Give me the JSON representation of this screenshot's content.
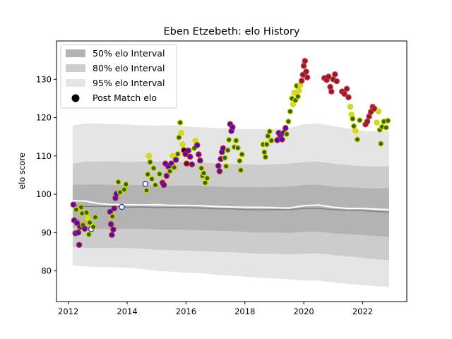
{
  "chart_data": {
    "type": "scatter",
    "title": "Eben Etzebeth: elo History",
    "xlabel": "",
    "ylabel": "elo score",
    "xlim": [
      2011.6,
      2023.5
    ],
    "ylim": [
      72,
      140
    ],
    "x_ticks": [
      2012,
      2014,
      2016,
      2018,
      2020,
      2022
    ],
    "x_tick_labels": [
      "2012",
      "2014",
      "2016",
      "2018",
      "2020",
      "2022"
    ],
    "y_ticks": [
      80,
      90,
      100,
      110,
      120,
      130
    ],
    "y_tick_labels": [
      "80",
      "90",
      "100",
      "110",
      "120",
      "130"
    ],
    "grid": false,
    "legend": {
      "position": "top-left",
      "entries": [
        {
          "label": "50% elo Interval",
          "color": "#b3b3b3"
        },
        {
          "label": "80% elo Interval",
          "color": "#cccccc"
        },
        {
          "label": "95% elo Interval",
          "color": "#e5e5e5"
        },
        {
          "label": "Post Match elo",
          "color": "#000000"
        }
      ]
    },
    "bands": {
      "x": [
        2012.15,
        2012.6,
        2013.0,
        2013.5,
        2014.0,
        2014.5,
        2015.0,
        2015.5,
        2016.0,
        2016.5,
        2017.0,
        2017.5,
        2018.0,
        2018.5,
        2019.0,
        2019.5,
        2020.0,
        2020.5,
        2021.0,
        2021.5,
        2022.0,
        2022.5,
        2022.9
      ],
      "median": [
        97.0,
        96.8,
        96.8,
        96.8,
        96.6,
        96.7,
        96.5,
        96.6,
        96.5,
        96.4,
        96.2,
        96.2,
        96.0,
        95.9,
        96.0,
        96.0,
        96.3,
        96.3,
        96.0,
        95.8,
        95.7,
        95.5,
        95.3
      ],
      "p50": [
        [
          91.5,
          102.5
        ],
        [
          91.0,
          102.5
        ],
        [
          91.0,
          102.6
        ],
        [
          91.0,
          102.4
        ],
        [
          91.0,
          102.3
        ],
        [
          91.0,
          102.4
        ],
        [
          90.8,
          102.3
        ],
        [
          90.8,
          102.2
        ],
        [
          90.7,
          102.3
        ],
        [
          90.6,
          102.2
        ],
        [
          90.5,
          102.0
        ],
        [
          90.4,
          101.9
        ],
        [
          90.2,
          101.9
        ],
        [
          90.0,
          101.8
        ],
        [
          90.0,
          101.9
        ],
        [
          89.9,
          102.0
        ],
        [
          90.2,
          102.4
        ],
        [
          90.3,
          102.5
        ],
        [
          89.8,
          102.0
        ],
        [
          89.6,
          101.8
        ],
        [
          89.4,
          101.6
        ],
        [
          89.1,
          101.5
        ],
        [
          88.9,
          101.6
        ]
      ],
      "p80": [
        [
          86.2,
          108.0
        ],
        [
          86.0,
          108.5
        ],
        [
          86.0,
          108.5
        ],
        [
          86.0,
          108.6
        ],
        [
          86.0,
          108.4
        ],
        [
          85.8,
          108.5
        ],
        [
          85.5,
          108.5
        ],
        [
          85.4,
          108.4
        ],
        [
          85.3,
          108.4
        ],
        [
          85.2,
          108.3
        ],
        [
          85.0,
          108.0
        ],
        [
          84.9,
          107.9
        ],
        [
          84.7,
          107.8
        ],
        [
          84.5,
          107.7
        ],
        [
          84.5,
          107.8
        ],
        [
          84.3,
          108.0
        ],
        [
          84.5,
          108.4
        ],
        [
          84.6,
          108.5
        ],
        [
          84.1,
          108.0
        ],
        [
          83.8,
          107.6
        ],
        [
          83.4,
          107.3
        ],
        [
          83.0,
          107.2
        ],
        [
          82.8,
          107.3
        ]
      ],
      "p95": [
        [
          81.4,
          118.0
        ],
        [
          81.2,
          118.5
        ],
        [
          81.0,
          118.5
        ],
        [
          81.0,
          118.3
        ],
        [
          80.8,
          118.2
        ],
        [
          80.5,
          118.0
        ],
        [
          80.0,
          117.9
        ],
        [
          79.8,
          118.0
        ],
        [
          79.5,
          117.7
        ],
        [
          79.4,
          117.5
        ],
        [
          79.0,
          117.3
        ],
        [
          78.8,
          117.2
        ],
        [
          78.5,
          117.0
        ],
        [
          78.2,
          117.0
        ],
        [
          78.0,
          117.0
        ],
        [
          77.8,
          117.3
        ],
        [
          77.5,
          118.3
        ],
        [
          77.5,
          118.5
        ],
        [
          77.0,
          117.8
        ],
        [
          76.6,
          117.2
        ],
        [
          76.3,
          116.6
        ],
        [
          76.0,
          116.4
        ],
        [
          75.8,
          116.5
        ]
      ]
    },
    "post_match_line": {
      "color": "#ffffff",
      "x": [
        2012.15,
        2012.6,
        2013.0,
        2013.5,
        2014.0,
        2014.5,
        2015.0,
        2015.5,
        2016.0,
        2016.5,
        2017.0,
        2017.5,
        2018.0,
        2018.5,
        2019.0,
        2019.5,
        2020.0,
        2020.5,
        2021.0,
        2021.5,
        2022.0,
        2022.5,
        2022.9
      ],
      "y": [
        98.3,
        98.2,
        97.6,
        97.3,
        97.3,
        97.2,
        97.3,
        97.1,
        97.1,
        97.0,
        96.8,
        96.7,
        96.6,
        96.6,
        96.5,
        96.4,
        97.0,
        97.2,
        96.6,
        96.3,
        96.3,
        96.1,
        96.0
      ]
    },
    "marker_styles": {
      "A": {
        "fill": "#2e6b0d",
        "edge": "#e0d010"
      },
      "B": {
        "fill": "#3a10c8",
        "edge": "#cc2222"
      },
      "C": {
        "fill": "#ffffff",
        "edge": "#2233bb"
      },
      "D": {
        "fill": "#2233bb",
        "edge": "#cc2222"
      },
      "E": {
        "fill": "#c8e020",
        "edge": "#e0d010"
      },
      "F": {
        "fill": "#8a1e2a",
        "edge": "#cc3344"
      },
      "G": {
        "fill": "#5a1010",
        "edge": "#cc2222"
      },
      "H": {
        "fill": "#111111",
        "edge": "#cc2222"
      }
    },
    "points": [
      {
        "x": 2012.17,
        "y": 97.3,
        "s": "B"
      },
      {
        "x": 2012.2,
        "y": 93.2,
        "s": "B"
      },
      {
        "x": 2012.24,
        "y": 89.8,
        "s": "D"
      },
      {
        "x": 2012.27,
        "y": 96.0,
        "s": "A"
      },
      {
        "x": 2012.3,
        "y": 92.5,
        "s": "B"
      },
      {
        "x": 2012.34,
        "y": 90.0,
        "s": "B"
      },
      {
        "x": 2012.37,
        "y": 86.8,
        "s": "B"
      },
      {
        "x": 2012.4,
        "y": 91.5,
        "s": "D"
      },
      {
        "x": 2012.44,
        "y": 96.6,
        "s": "A"
      },
      {
        "x": 2012.47,
        "y": 95.0,
        "s": "A"
      },
      {
        "x": 2012.5,
        "y": 92.0,
        "s": "A"
      },
      {
        "x": 2012.56,
        "y": 91.0,
        "s": "B"
      },
      {
        "x": 2012.62,
        "y": 95.2,
        "s": "A"
      },
      {
        "x": 2012.66,
        "y": 93.8,
        "s": "E"
      },
      {
        "x": 2012.7,
        "y": 89.5,
        "s": "A"
      },
      {
        "x": 2012.73,
        "y": 92.6,
        "s": "A"
      },
      {
        "x": 2012.78,
        "y": 90.9,
        "s": "C"
      },
      {
        "x": 2012.85,
        "y": 91.5,
        "s": "A"
      },
      {
        "x": 2012.92,
        "y": 94.0,
        "s": "A"
      },
      {
        "x": 2013.42,
        "y": 95.4,
        "s": "B"
      },
      {
        "x": 2013.45,
        "y": 92.2,
        "s": "B"
      },
      {
        "x": 2013.48,
        "y": 89.4,
        "s": "B"
      },
      {
        "x": 2013.5,
        "y": 94.2,
        "s": "A"
      },
      {
        "x": 2013.53,
        "y": 90.8,
        "s": "B"
      },
      {
        "x": 2013.56,
        "y": 96.3,
        "s": "B"
      },
      {
        "x": 2013.6,
        "y": 99.0,
        "s": "B"
      },
      {
        "x": 2013.64,
        "y": 100.1,
        "s": "B"
      },
      {
        "x": 2013.7,
        "y": 103.2,
        "s": "A"
      },
      {
        "x": 2013.76,
        "y": 100.5,
        "s": "A"
      },
      {
        "x": 2013.82,
        "y": 96.7,
        "s": "C"
      },
      {
        "x": 2013.9,
        "y": 101.2,
        "s": "A"
      },
      {
        "x": 2013.96,
        "y": 102.6,
        "s": "A"
      },
      {
        "x": 2014.62,
        "y": 102.7,
        "s": "C"
      },
      {
        "x": 2014.66,
        "y": 101.0,
        "s": "A"
      },
      {
        "x": 2014.7,
        "y": 105.2,
        "s": "A"
      },
      {
        "x": 2014.74,
        "y": 110.0,
        "s": "E"
      },
      {
        "x": 2014.78,
        "y": 108.4,
        "s": "A"
      },
      {
        "x": 2014.84,
        "y": 104.0,
        "s": "A"
      },
      {
        "x": 2014.9,
        "y": 106.8,
        "s": "A"
      },
      {
        "x": 2014.96,
        "y": 102.4,
        "s": "A"
      },
      {
        "x": 2015.1,
        "y": 105.3,
        "s": "A"
      },
      {
        "x": 2015.2,
        "y": 103.0,
        "s": "B"
      },
      {
        "x": 2015.25,
        "y": 102.4,
        "s": "B"
      },
      {
        "x": 2015.3,
        "y": 108.0,
        "s": "B"
      },
      {
        "x": 2015.34,
        "y": 104.8,
        "s": "B"
      },
      {
        "x": 2015.4,
        "y": 107.2,
        "s": "B"
      },
      {
        "x": 2015.45,
        "y": 106.0,
        "s": "A"
      },
      {
        "x": 2015.5,
        "y": 108.0,
        "s": "B"
      },
      {
        "x": 2015.55,
        "y": 110.0,
        "s": "E"
      },
      {
        "x": 2015.6,
        "y": 107.0,
        "s": "A"
      },
      {
        "x": 2015.66,
        "y": 109.0,
        "s": "B"
      },
      {
        "x": 2015.72,
        "y": 110.5,
        "s": "A"
      },
      {
        "x": 2015.76,
        "y": 114.8,
        "s": "A"
      },
      {
        "x": 2015.8,
        "y": 118.7,
        "s": "A"
      },
      {
        "x": 2015.84,
        "y": 116.0,
        "s": "E"
      },
      {
        "x": 2015.88,
        "y": 113.0,
        "s": "E"
      },
      {
        "x": 2015.93,
        "y": 111.5,
        "s": "H"
      },
      {
        "x": 2015.98,
        "y": 110.5,
        "s": "B"
      },
      {
        "x": 2016.02,
        "y": 108.0,
        "s": "G"
      },
      {
        "x": 2016.08,
        "y": 111.4,
        "s": "B"
      },
      {
        "x": 2016.14,
        "y": 109.8,
        "s": "B"
      },
      {
        "x": 2016.2,
        "y": 107.8,
        "s": "B"
      },
      {
        "x": 2016.28,
        "y": 112.0,
        "s": "A"
      },
      {
        "x": 2016.32,
        "y": 114.0,
        "s": "E"
      },
      {
        "x": 2016.38,
        "y": 112.8,
        "s": "B"
      },
      {
        "x": 2016.43,
        "y": 110.4,
        "s": "B"
      },
      {
        "x": 2016.48,
        "y": 108.8,
        "s": "B"
      },
      {
        "x": 2016.52,
        "y": 106.8,
        "s": "A"
      },
      {
        "x": 2016.56,
        "y": 104.8,
        "s": "A"
      },
      {
        "x": 2016.6,
        "y": 105.5,
        "s": "A"
      },
      {
        "x": 2016.65,
        "y": 103.0,
        "s": "A"
      },
      {
        "x": 2016.72,
        "y": 104.2,
        "s": "A"
      },
      {
        "x": 2017.1,
        "y": 107.4,
        "s": "B"
      },
      {
        "x": 2017.14,
        "y": 106.0,
        "s": "B"
      },
      {
        "x": 2017.18,
        "y": 109.2,
        "s": "B"
      },
      {
        "x": 2017.22,
        "y": 111.0,
        "s": "B"
      },
      {
        "x": 2017.26,
        "y": 112.0,
        "s": "B"
      },
      {
        "x": 2017.32,
        "y": 109.5,
        "s": "A"
      },
      {
        "x": 2017.36,
        "y": 107.3,
        "s": "A"
      },
      {
        "x": 2017.42,
        "y": 111.5,
        "s": "A"
      },
      {
        "x": 2017.46,
        "y": 114.2,
        "s": "A"
      },
      {
        "x": 2017.5,
        "y": 118.3,
        "s": "B"
      },
      {
        "x": 2017.54,
        "y": 116.5,
        "s": "B"
      },
      {
        "x": 2017.58,
        "y": 117.5,
        "s": "B"
      },
      {
        "x": 2017.64,
        "y": 112.3,
        "s": "A"
      },
      {
        "x": 2017.7,
        "y": 114.0,
        "s": "A"
      },
      {
        "x": 2017.76,
        "y": 112.1,
        "s": "A"
      },
      {
        "x": 2017.82,
        "y": 108.7,
        "s": "A"
      },
      {
        "x": 2017.86,
        "y": 106.3,
        "s": "A"
      },
      {
        "x": 2017.9,
        "y": 110.4,
        "s": "A"
      },
      {
        "x": 2018.62,
        "y": 113.0,
        "s": "A"
      },
      {
        "x": 2018.66,
        "y": 111.0,
        "s": "A"
      },
      {
        "x": 2018.7,
        "y": 109.7,
        "s": "A"
      },
      {
        "x": 2018.74,
        "y": 113.0,
        "s": "A"
      },
      {
        "x": 2018.78,
        "y": 115.2,
        "s": "A"
      },
      {
        "x": 2018.84,
        "y": 116.4,
        "s": "A"
      },
      {
        "x": 2018.9,
        "y": 114.0,
        "s": "A"
      },
      {
        "x": 2019.1,
        "y": 114.1,
        "s": "B"
      },
      {
        "x": 2019.15,
        "y": 116.0,
        "s": "B"
      },
      {
        "x": 2019.2,
        "y": 115.2,
        "s": "D"
      },
      {
        "x": 2019.26,
        "y": 114.3,
        "s": "B"
      },
      {
        "x": 2019.32,
        "y": 116.0,
        "s": "B"
      },
      {
        "x": 2019.38,
        "y": 117.3,
        "s": "B"
      },
      {
        "x": 2019.42,
        "y": 115.7,
        "s": "A"
      },
      {
        "x": 2019.48,
        "y": 119.0,
        "s": "A"
      },
      {
        "x": 2019.54,
        "y": 121.6,
        "s": "A"
      },
      {
        "x": 2019.6,
        "y": 125.0,
        "s": "A"
      },
      {
        "x": 2019.64,
        "y": 123.5,
        "s": "E"
      },
      {
        "x": 2019.68,
        "y": 126.5,
        "s": "E"
      },
      {
        "x": 2019.72,
        "y": 124.5,
        "s": "A"
      },
      {
        "x": 2019.76,
        "y": 128.3,
        "s": "A"
      },
      {
        "x": 2019.8,
        "y": 125.5,
        "s": "A"
      },
      {
        "x": 2019.84,
        "y": 127.0,
        "s": "E"
      },
      {
        "x": 2019.88,
        "y": 128.5,
        "s": "E"
      },
      {
        "x": 2019.93,
        "y": 129.6,
        "s": "F"
      },
      {
        "x": 2019.97,
        "y": 131.2,
        "s": "F"
      },
      {
        "x": 2020.0,
        "y": 133.5,
        "s": "F"
      },
      {
        "x": 2020.04,
        "y": 134.8,
        "s": "F"
      },
      {
        "x": 2020.08,
        "y": 132.0,
        "s": "F"
      },
      {
        "x": 2020.12,
        "y": 130.5,
        "s": "F"
      },
      {
        "x": 2020.7,
        "y": 130.3,
        "s": "F"
      },
      {
        "x": 2020.78,
        "y": 129.8,
        "s": "F"
      },
      {
        "x": 2020.84,
        "y": 130.7,
        "s": "F"
      },
      {
        "x": 2020.9,
        "y": 128.0,
        "s": "F"
      },
      {
        "x": 2020.94,
        "y": 126.8,
        "s": "F"
      },
      {
        "x": 2021.0,
        "y": 130.0,
        "s": "F"
      },
      {
        "x": 2021.06,
        "y": 131.3,
        "s": "F"
      },
      {
        "x": 2021.12,
        "y": 129.5,
        "s": "F"
      },
      {
        "x": 2021.3,
        "y": 126.8,
        "s": "F"
      },
      {
        "x": 2021.38,
        "y": 126.2,
        "s": "F"
      },
      {
        "x": 2021.46,
        "y": 127.5,
        "s": "F"
      },
      {
        "x": 2021.52,
        "y": 125.3,
        "s": "F"
      },
      {
        "x": 2021.58,
        "y": 122.8,
        "s": "E"
      },
      {
        "x": 2021.62,
        "y": 120.8,
        "s": "E"
      },
      {
        "x": 2021.66,
        "y": 119.7,
        "s": "A"
      },
      {
        "x": 2021.7,
        "y": 117.8,
        "s": "A"
      },
      {
        "x": 2021.76,
        "y": 116.5,
        "s": "E"
      },
      {
        "x": 2021.82,
        "y": 114.3,
        "s": "A"
      },
      {
        "x": 2021.9,
        "y": 119.3,
        "s": "A"
      },
      {
        "x": 2022.1,
        "y": 118.2,
        "s": "F"
      },
      {
        "x": 2022.16,
        "y": 119.0,
        "s": "F"
      },
      {
        "x": 2022.22,
        "y": 120.3,
        "s": "F"
      },
      {
        "x": 2022.28,
        "y": 121.5,
        "s": "F"
      },
      {
        "x": 2022.34,
        "y": 122.8,
        "s": "F"
      },
      {
        "x": 2022.4,
        "y": 122.3,
        "s": "F"
      },
      {
        "x": 2022.48,
        "y": 118.7,
        "s": "E"
      },
      {
        "x": 2022.54,
        "y": 121.6,
        "s": "E"
      },
      {
        "x": 2022.58,
        "y": 116.8,
        "s": "A"
      },
      {
        "x": 2022.62,
        "y": 113.2,
        "s": "A"
      },
      {
        "x": 2022.66,
        "y": 117.6,
        "s": "A"
      },
      {
        "x": 2022.72,
        "y": 119.0,
        "s": "A"
      },
      {
        "x": 2022.8,
        "y": 117.4,
        "s": "A"
      },
      {
        "x": 2022.86,
        "y": 119.2,
        "s": "A"
      }
    ]
  }
}
